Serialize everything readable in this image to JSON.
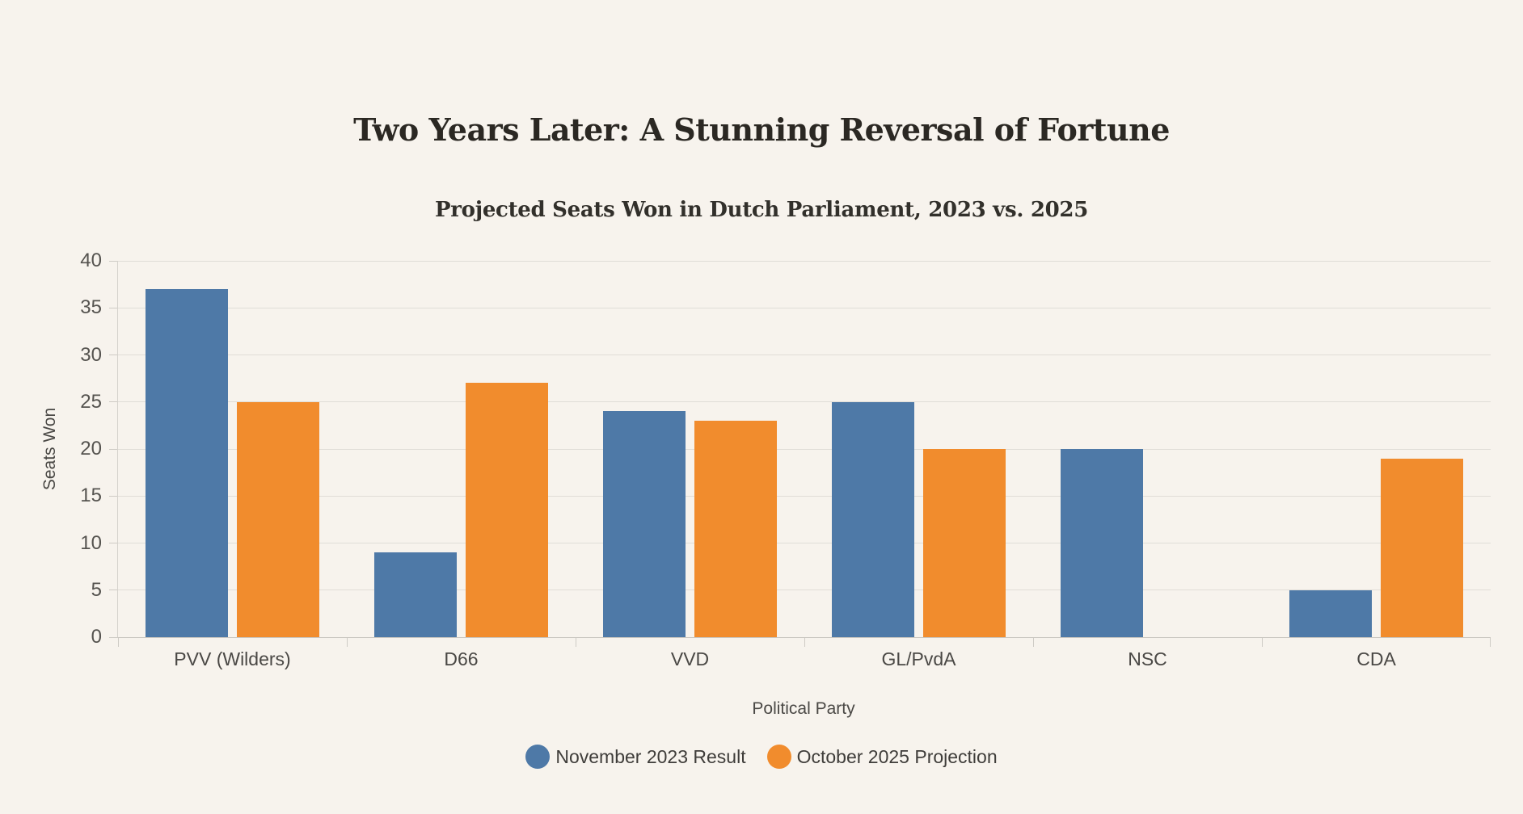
{
  "header": {
    "title": "Two Years Later: A Stunning Reversal of Fortune",
    "subtitle": "Projected Seats Won in Dutch Parliament, 2023 vs. 2025"
  },
  "colors": {
    "background": "#f7f3ed",
    "series_blue": "#4e79a7",
    "series_orange": "#f18c2d",
    "gridline": "#e0ddd7",
    "axis_line": "#c9c6c0"
  },
  "chart_data": {
    "type": "bar",
    "title": "Two Years Later: A Stunning Reversal of Fortune",
    "subtitle": "Projected Seats Won in Dutch Parliament, 2023 vs. 2025",
    "categories": [
      "PVV (Wilders)",
      "D66",
      "VVD",
      "GL/PvdA",
      "NSC",
      "CDA"
    ],
    "series": [
      {
        "name": "November 2023 Result",
        "color": "#4e79a7",
        "values": [
          37,
          9,
          24,
          25,
          20,
          5
        ]
      },
      {
        "name": "October 2025 Projection",
        "color": "#f18c2d",
        "values": [
          25,
          27,
          23,
          20,
          0,
          19
        ]
      }
    ],
    "xlabel": "Political Party",
    "ylabel": "Seats Won",
    "ylim": [
      0,
      40
    ],
    "ytick_step": 5,
    "yticks": [
      0,
      5,
      10,
      15,
      20,
      25,
      30,
      35,
      40
    ],
    "grid": "horizontal",
    "legend_position": "bottom"
  }
}
